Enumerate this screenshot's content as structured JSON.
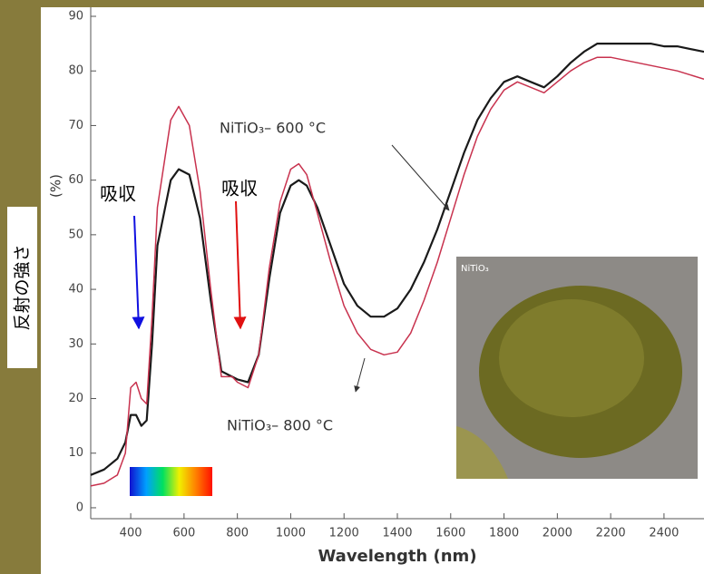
{
  "chart_data": {
    "type": "line",
    "x_label": "Wavelength (nm)",
    "y_label": "反射の強さ",
    "y_unit": "(%)",
    "annotations": [
      "NiTiO₃– 600 °C",
      "NiTiO₃– 800 °C",
      "吸収",
      "吸収",
      "NiTiO₃"
    ],
    "x": [
      250,
      300,
      350,
      380,
      400,
      420,
      440,
      460,
      480,
      500,
      550,
      580,
      620,
      660,
      700,
      740,
      780,
      800,
      840,
      880,
      920,
      960,
      1000,
      1030,
      1060,
      1100,
      1150,
      1200,
      1250,
      1300,
      1350,
      1400,
      1450,
      1500,
      1550,
      1600,
      1650,
      1700,
      1750,
      1800,
      1850,
      1900,
      1950,
      2000,
      2050,
      2100,
      2150,
      2200,
      2250,
      2300,
      2350,
      2400,
      2450,
      2550
    ],
    "series": [
      {
        "name": "NiTiO₃– 600 °C",
        "color": "#1a1a1a",
        "values": [
          6,
          7,
          9,
          12,
          17,
          17,
          15,
          16,
          30,
          48,
          60,
          62,
          61,
          53,
          38,
          25,
          24,
          23.5,
          23,
          28,
          42,
          54,
          59,
          60,
          59,
          55,
          48,
          41,
          37,
          35,
          35,
          36.5,
          40,
          45,
          51,
          58,
          65,
          71,
          75,
          78,
          79,
          78,
          77,
          79,
          81.5,
          83.5,
          85,
          85,
          85,
          85,
          85,
          84.5,
          84.5,
          83.5
        ]
      },
      {
        "name": "NiTiO₃– 800 °C",
        "color": "#c8324e",
        "values": [
          4,
          4.5,
          6,
          10,
          22,
          23,
          20,
          19,
          35,
          55,
          71,
          73.5,
          70,
          58,
          40,
          24,
          24,
          23,
          22,
          28,
          44,
          56,
          62,
          63,
          61,
          54,
          45,
          37,
          32,
          29,
          28,
          28.5,
          32,
          38,
          45,
          53,
          61,
          68,
          73,
          76.5,
          78,
          77,
          76,
          78,
          80,
          81.5,
          82.5,
          82.5,
          82,
          81.5,
          81,
          80.5,
          80,
          78.5
        ]
      }
    ],
    "xlim": [
      250,
      2550
    ],
    "ylim": [
      -2,
      90
    ],
    "xticks": [
      400,
      600,
      800,
      1000,
      1200,
      1400,
      1600,
      1800,
      2000,
      2200,
      2400
    ],
    "yticks": [
      0,
      10,
      20,
      30,
      40,
      50,
      60,
      70,
      80,
      90
    ]
  }
}
